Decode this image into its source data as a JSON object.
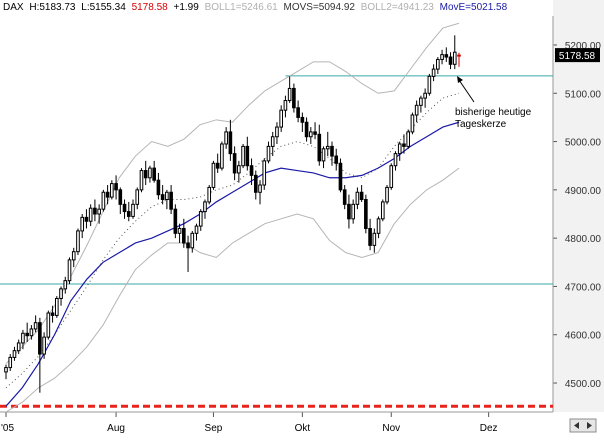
{
  "chart_data": {
    "type": "candlestick",
    "header": {
      "symbol": "DAX",
      "high_label": "H:5183.73",
      "low_label": "L:5155.34",
      "close_label": "5178.58",
      "change_label": "+1.99",
      "bb1_label": "BOLL1=5246.61",
      "movs_label": "MOVS=5094.92",
      "bb2_label": "BOLL2=4941.23",
      "move_label": "MovE=5021.58"
    },
    "price_box": "5178.58",
    "y_ticks": [
      "5200.00",
      "5100.00",
      "5000.00",
      "4900.00",
      "4800.00",
      "4700.00",
      "4600.00",
      "4500.00"
    ],
    "x_ticks": [
      "'05",
      "Aug",
      "Sep",
      "Okt",
      "Nov",
      "Dez"
    ],
    "ylim": [
      4440,
      5260
    ],
    "hlines": [
      {
        "value": 4705,
        "color": "#3aa7a7",
        "style": "solid"
      },
      {
        "value": 5136,
        "color": "#3aa7a7",
        "style": "solid",
        "from_bar": 66
      },
      {
        "value": 4452,
        "color": "#e8231b",
        "style": "dashed"
      }
    ],
    "annotation": {
      "line1": "bisherige heutige",
      "line2": "Tageskerze"
    },
    "bb_upper": [
      4540,
      4575,
      4610,
      4660,
      4720,
      4785,
      4855,
      4925,
      4970,
      5000,
      4990,
      5005,
      5035,
      5045,
      5040,
      5075,
      5105,
      5125,
      5145,
      5165,
      5165,
      5145,
      5120,
      5100,
      5105,
      5150,
      5195,
      5235,
      5245
    ],
    "bb_lower": [
      4440,
      4460,
      4490,
      4510,
      4540,
      4575,
      4620,
      4680,
      4735,
      4765,
      4790,
      4790,
      4770,
      4760,
      4790,
      4810,
      4830,
      4840,
      4850,
      4840,
      4795,
      4770,
      4760,
      4770,
      4830,
      4870,
      4900,
      4920,
      4945
    ],
    "movs": [
      4490,
      4520,
      4555,
      4600,
      4650,
      4700,
      4755,
      4800,
      4835,
      4865,
      4880,
      4880,
      4885,
      4900,
      4910,
      4935,
      4965,
      4990,
      5000,
      4990,
      4965,
      4935,
      4925,
      4945,
      4990,
      5025,
      5060,
      5090,
      5100
    ],
    "move": [
      4452,
      4490,
      4540,
      4600,
      4670,
      4715,
      4750,
      4770,
      4790,
      4800,
      4815,
      4830,
      4850,
      4875,
      4895,
      4915,
      4935,
      4945,
      4940,
      4935,
      4925,
      4925,
      4930,
      4945,
      4965,
      4990,
      5010,
      5030,
      5040
    ],
    "candles": [
      [
        4523,
        4538,
        4508,
        4532
      ],
      [
        4532,
        4560,
        4525,
        4553
      ],
      [
        4553,
        4575,
        4546,
        4567
      ],
      [
        4567,
        4590,
        4560,
        4583
      ],
      [
        4583,
        4610,
        4570,
        4603
      ],
      [
        4603,
        4625,
        4585,
        4598
      ],
      [
        4598,
        4620,
        4590,
        4612
      ],
      [
        4612,
        4640,
        4605,
        4625
      ],
      [
        4625,
        4635,
        4480,
        4560
      ],
      [
        4560,
        4605,
        4550,
        4595
      ],
      [
        4595,
        4650,
        4590,
        4645
      ],
      [
        4645,
        4660,
        4625,
        4640
      ],
      [
        4640,
        4680,
        4635,
        4675
      ],
      [
        4675,
        4700,
        4660,
        4695
      ],
      [
        4695,
        4720,
        4685,
        4712
      ],
      [
        4712,
        4760,
        4705,
        4755
      ],
      [
        4755,
        4780,
        4740,
        4772
      ],
      [
        4772,
        4820,
        4765,
        4815
      ],
      [
        4815,
        4850,
        4800,
        4843
      ],
      [
        4843,
        4860,
        4820,
        4835
      ],
      [
        4835,
        4870,
        4825,
        4862
      ],
      [
        4862,
        4880,
        4835,
        4850
      ],
      [
        4850,
        4870,
        4830,
        4860
      ],
      [
        4860,
        4900,
        4855,
        4895
      ],
      [
        4895,
        4910,
        4870,
        4885
      ],
      [
        4885,
        4920,
        4880,
        4913
      ],
      [
        4913,
        4930,
        4880,
        4900
      ],
      [
        4900,
        4905,
        4850,
        4870
      ],
      [
        4870,
        4880,
        4840,
        4855
      ],
      [
        4855,
        4875,
        4835,
        4845
      ],
      [
        4845,
        4880,
        4840,
        4870
      ],
      [
        4870,
        4905,
        4860,
        4900
      ],
      [
        4900,
        4945,
        4895,
        4940
      ],
      [
        4940,
        4960,
        4910,
        4925
      ],
      [
        4925,
        4950,
        4915,
        4945
      ],
      [
        4945,
        4960,
        4915,
        4920
      ],
      [
        4920,
        4935,
        4880,
        4890
      ],
      [
        4890,
        4910,
        4870,
        4880
      ],
      [
        4880,
        4900,
        4860,
        4895
      ],
      [
        4895,
        4910,
        4850,
        4860
      ],
      [
        4860,
        4870,
        4800,
        4810
      ],
      [
        4810,
        4830,
        4790,
        4820
      ],
      [
        4820,
        4840,
        4780,
        4790
      ],
      [
        4790,
        4805,
        4730,
        4780
      ],
      [
        4780,
        4815,
        4770,
        4810
      ],
      [
        4810,
        4830,
        4795,
        4825
      ],
      [
        4825,
        4860,
        4815,
        4855
      ],
      [
        4855,
        4880,
        4840,
        4875
      ],
      [
        4875,
        4910,
        4870,
        4905
      ],
      [
        4905,
        4960,
        4900,
        4955
      ],
      [
        4955,
        4975,
        4935,
        4945
      ],
      [
        4945,
        5000,
        4940,
        4995
      ],
      [
        4995,
        5030,
        4985,
        5020
      ],
      [
        5020,
        5045,
        4960,
        4975
      ],
      [
        4975,
        4990,
        4920,
        4935
      ],
      [
        4935,
        4960,
        4915,
        4950
      ],
      [
        4950,
        4995,
        4945,
        4990
      ],
      [
        4990,
        5010,
        4940,
        4950
      ],
      [
        4950,
        4965,
        4910,
        4930
      ],
      [
        4930,
        4940,
        4880,
        4895
      ],
      [
        4895,
        4920,
        4870,
        4910
      ],
      [
        4910,
        4965,
        4900,
        4960
      ],
      [
        4960,
        5000,
        4955,
        4990
      ],
      [
        4990,
        5020,
        4970,
        5010
      ],
      [
        5010,
        5040,
        4995,
        5030
      ],
      [
        5030,
        5075,
        5020,
        5065
      ],
      [
        5065,
        5095,
        5050,
        5085
      ],
      [
        5085,
        5135,
        5080,
        5110
      ],
      [
        5110,
        5120,
        5060,
        5070
      ],
      [
        5070,
        5085,
        5040,
        5050
      ],
      [
        5050,
        5060,
        5020,
        5040
      ],
      [
        5040,
        5050,
        5000,
        5010
      ],
      [
        5010,
        5030,
        4995,
        5020
      ],
      [
        5020,
        5040,
        5005,
        5015
      ],
      [
        5015,
        5035,
        4950,
        4960
      ],
      [
        4960,
        4990,
        4945,
        4985
      ],
      [
        4985,
        5020,
        4970,
        4990
      ],
      [
        4990,
        5000,
        4950,
        4970
      ],
      [
        4970,
        4985,
        4940,
        4955
      ],
      [
        4955,
        4965,
        4895,
        4900
      ],
      [
        4900,
        4910,
        4860,
        4870
      ],
      [
        4870,
        4890,
        4820,
        4840
      ],
      [
        4840,
        4880,
        4830,
        4870
      ],
      [
        4870,
        4905,
        4860,
        4895
      ],
      [
        4895,
        4910,
        4875,
        4880
      ],
      [
        4880,
        4890,
        4810,
        4820
      ],
      [
        4820,
        4840,
        4775,
        4785
      ],
      [
        4785,
        4820,
        4770,
        4810
      ],
      [
        4810,
        4845,
        4800,
        4840
      ],
      [
        4840,
        4880,
        4835,
        4875
      ],
      [
        4875,
        4910,
        4870,
        4905
      ],
      [
        4905,
        4955,
        4900,
        4950
      ],
      [
        4950,
        4980,
        4940,
        4975
      ],
      [
        4975,
        5000,
        4960,
        4995
      ],
      [
        4995,
        5015,
        4975,
        4990
      ],
      [
        4990,
        5025,
        4985,
        5020
      ],
      [
        5020,
        5060,
        5015,
        5055
      ],
      [
        5055,
        5085,
        5040,
        5075
      ],
      [
        5075,
        5095,
        5060,
        5090
      ],
      [
        5090,
        5110,
        5070,
        5100
      ],
      [
        5100,
        5140,
        5095,
        5135
      ],
      [
        5135,
        5160,
        5125,
        5150
      ],
      [
        5150,
        5175,
        5140,
        5170
      ],
      [
        5170,
        5190,
        5160,
        5180
      ],
      [
        5180,
        5195,
        5165,
        5175
      ],
      [
        5175,
        5185,
        5150,
        5160
      ],
      [
        5160,
        5220,
        5150,
        5185
      ],
      [
        5178,
        5184,
        5155,
        5179
      ]
    ]
  }
}
